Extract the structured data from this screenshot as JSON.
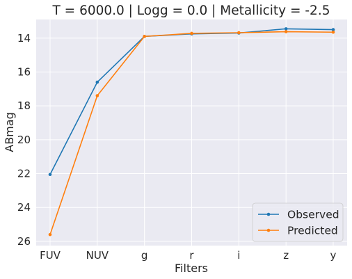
{
  "chart_data": {
    "type": "line",
    "title": "T = 6000.0 | Logg = 0.0 | Metallicity = -2.5",
    "xlabel": "Filters",
    "ylabel": "ABmag",
    "categories": [
      "FUV",
      "NUV",
      "g",
      "r",
      "i",
      "z",
      "y"
    ],
    "ylim": [
      26.25,
      12.9
    ],
    "y_inverted": true,
    "yticks": [
      14,
      16,
      18,
      20,
      22,
      24,
      26
    ],
    "grid": true,
    "legend_position": "bottom-right",
    "series": [
      {
        "name": "Observed",
        "color": "#1f77b4",
        "values": [
          22.05,
          16.6,
          13.9,
          13.75,
          13.7,
          13.45,
          13.5
        ]
      },
      {
        "name": "Predicted",
        "color": "#ff7f0e",
        "values": [
          25.6,
          17.4,
          13.9,
          13.72,
          13.68,
          13.62,
          13.65
        ]
      }
    ]
  }
}
